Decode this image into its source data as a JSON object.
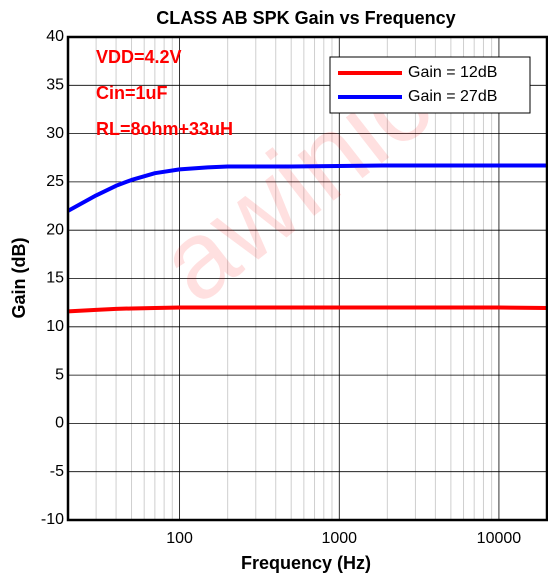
{
  "chart_data": {
    "type": "line",
    "title": "CLASS AB SPK Gain vs Frequency",
    "xlabel": "Frequency (Hz)",
    "ylabel": "Gain (dB)",
    "annotations": [
      "VDD=4.2V",
      "Cin=1uF",
      "RL=8ohm+33uH"
    ],
    "watermark": "awinic",
    "x": [
      20,
      30,
      40,
      50,
      70,
      100,
      150,
      200,
      300,
      500,
      1000,
      2000,
      5000,
      10000,
      20000
    ],
    "series": [
      {
        "name": "Gain = 12dB",
        "color": "#ff0000",
        "values": [
          11.6,
          11.75,
          11.85,
          11.9,
          11.95,
          12,
          12,
          12,
          12,
          12,
          12,
          12,
          12,
          12,
          11.95
        ]
      },
      {
        "name": "Gain = 27dB",
        "color": "#0000ff",
        "values": [
          22,
          23.6,
          24.6,
          25.2,
          25.9,
          26.3,
          26.5,
          26.6,
          26.6,
          26.6,
          26.65,
          26.7,
          26.7,
          26.7,
          26.7
        ]
      }
    ],
    "xscale": "log",
    "xlim": [
      20,
      20000
    ],
    "xticks": [
      100,
      1000,
      10000
    ],
    "xminor_grid": [
      20,
      30,
      40,
      50,
      60,
      70,
      80,
      90,
      200,
      300,
      400,
      500,
      600,
      700,
      800,
      900,
      2000,
      3000,
      4000,
      5000,
      6000,
      7000,
      8000,
      9000
    ],
    "ylim": [
      -10,
      40
    ],
    "yticks": [
      -10,
      -5,
      0,
      5,
      10,
      15,
      20,
      25,
      30,
      35,
      40
    ],
    "grid": true,
    "legend": "upper right"
  }
}
